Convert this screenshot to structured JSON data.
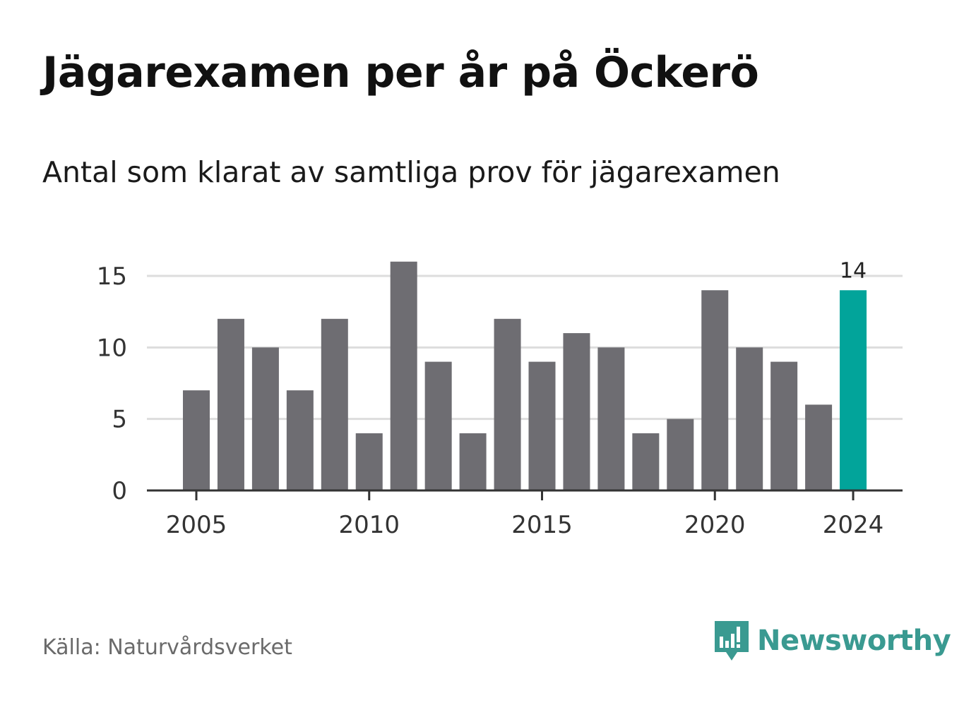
{
  "title": "Jägarexamen per år på Öckerö",
  "subtitle": "Antal som klarat av samtliga prov för jägarexamen",
  "source": "Källa: Naturvårdsverket",
  "logo": {
    "name": "Newsworthy",
    "icon": "bar-chart-chat-bubble-icon"
  },
  "colors": {
    "bar": "#6e6d72",
    "highlight": "#02a49a",
    "grid": "#dddddd",
    "axis": "#333333",
    "logo": "#3a9a91"
  },
  "chart_data": {
    "type": "bar",
    "title": "Jägarexamen per år på Öckerö",
    "subtitle": "Antal som klarat av samtliga prov för jägarexamen",
    "xlabel": "",
    "ylabel": "",
    "x": [
      2005,
      2006,
      2007,
      2008,
      2009,
      2010,
      2011,
      2012,
      2013,
      2014,
      2015,
      2016,
      2017,
      2018,
      2019,
      2020,
      2021,
      2022,
      2023,
      2024
    ],
    "values": [
      7,
      12,
      10,
      7,
      12,
      4,
      16,
      9,
      4,
      12,
      9,
      11,
      10,
      4,
      5,
      14,
      10,
      9,
      6,
      14
    ],
    "ylim": [
      0,
      15
    ],
    "y_ticks": [
      0,
      5,
      10,
      15
    ],
    "x_ticks": [
      2005,
      2010,
      2015,
      2020,
      2024
    ],
    "highlight": {
      "x": 2024,
      "label": "14"
    },
    "grid": true
  }
}
